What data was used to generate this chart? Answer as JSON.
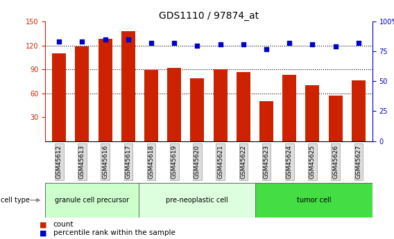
{
  "title": "GDS1110 / 97874_at",
  "samples": [
    "GSM45612",
    "GSM45613",
    "GSM45616",
    "GSM45617",
    "GSM45618",
    "GSM45619",
    "GSM45620",
    "GSM45621",
    "GSM45622",
    "GSM45623",
    "GSM45624",
    "GSM45625",
    "GSM45626",
    "GSM45627"
  ],
  "counts": [
    110,
    119,
    128,
    138,
    89,
    92,
    79,
    90,
    87,
    50,
    83,
    70,
    57,
    76
  ],
  "percentiles": [
    83,
    83,
    85,
    85,
    82,
    82,
    80,
    81,
    81,
    77,
    82,
    81,
    79,
    82
  ],
  "bar_color": "#cc2200",
  "dot_color": "#0000cc",
  "ylim_left": [
    0,
    150
  ],
  "ylim_right": [
    0,
    100
  ],
  "yticks_left": [
    30,
    60,
    90,
    120,
    150
  ],
  "yticks_right": [
    0,
    25,
    50,
    75,
    100
  ],
  "grid_lines": [
    60,
    90,
    120
  ],
  "cell_types": [
    {
      "label": "granule cell precursor",
      "start": 0,
      "end": 4,
      "color": "#ccffcc"
    },
    {
      "label": "pre-neoplastic cell",
      "start": 4,
      "end": 9,
      "color": "#ddffdd"
    },
    {
      "label": "tumor cell",
      "start": 9,
      "end": 14,
      "color": "#44dd44"
    }
  ],
  "legend_count_label": "count",
  "legend_pct_label": "percentile rank within the sample",
  "cell_type_label": "cell type",
  "bar_width": 0.6,
  "title_fontsize": 10,
  "tick_fontsize": 7,
  "label_fontsize": 6.5,
  "cell_fontsize": 7,
  "legend_fontsize": 7.5
}
